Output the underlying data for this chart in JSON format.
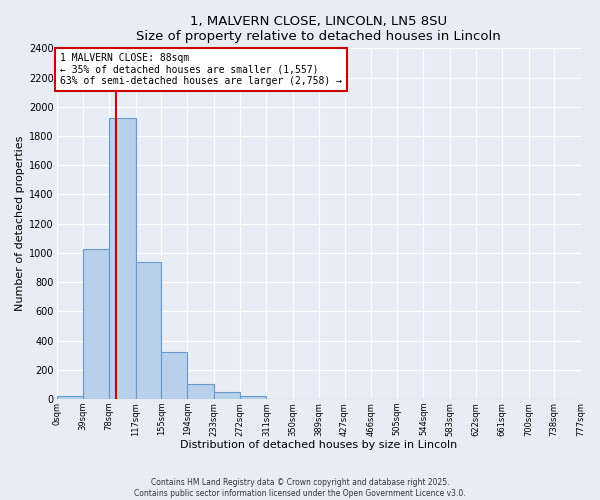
{
  "title": "1, MALVERN CLOSE, LINCOLN, LN5 8SU",
  "subtitle": "Size of property relative to detached houses in Lincoln",
  "bar_values": [
    20,
    1030,
    1920,
    940,
    320,
    105,
    50,
    20,
    0,
    0,
    0,
    0,
    0,
    0,
    0,
    0,
    0,
    0,
    0,
    0
  ],
  "bin_edges": [
    0,
    39,
    78,
    117,
    155,
    194,
    233,
    272,
    311,
    350,
    389,
    427,
    466,
    505,
    544,
    583,
    622,
    661,
    700,
    738,
    777
  ],
  "bin_labels": [
    "0sqm",
    "39sqm",
    "78sqm",
    "117sqm",
    "155sqm",
    "194sqm",
    "233sqm",
    "272sqm",
    "311sqm",
    "350sqm",
    "389sqm",
    "427sqm",
    "466sqm",
    "505sqm",
    "544sqm",
    "583sqm",
    "622sqm",
    "661sqm",
    "700sqm",
    "738sqm",
    "777sqm"
  ],
  "bar_color": "#b8d0ea",
  "bar_edgecolor": "#6699cc",
  "property_size": 88,
  "property_label": "1 MALVERN CLOSE: 88sqm",
  "pct_smaller": 35,
  "n_smaller": 1557,
  "pct_larger_semi": 63,
  "n_larger_semi": 2758,
  "vline_color": "#cc0000",
  "annotation_box_edgecolor": "#cc0000",
  "ylabel": "Number of detached properties",
  "xlabel": "Distribution of detached houses by size in Lincoln",
  "ylim": [
    0,
    2400
  ],
  "yticks": [
    0,
    200,
    400,
    600,
    800,
    1000,
    1200,
    1400,
    1600,
    1800,
    2000,
    2200,
    2400
  ],
  "footer_line1": "Contains HM Land Registry data © Crown copyright and database right 2025.",
  "footer_line2": "Contains public sector information licensed under the Open Government Licence v3.0.",
  "bg_color": "#e8edf5",
  "plot_bg_color": "#e8edf5"
}
